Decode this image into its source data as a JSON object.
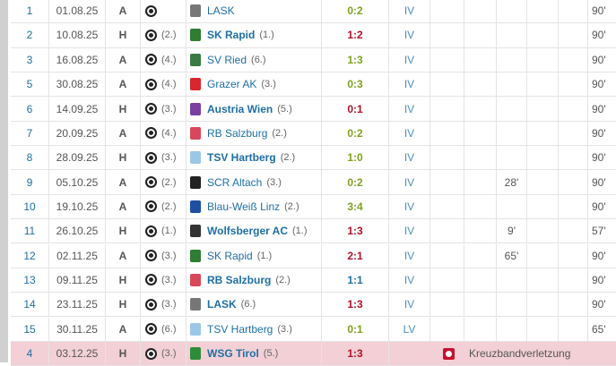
{
  "colors": {
    "win": "#7ea21e",
    "loss": "#b3102a",
    "draw": "#1d6fa5",
    "injured_row": "#f2d0d5"
  },
  "rows": [
    {
      "matchday": "1",
      "date": "01.08.25",
      "venue": "A",
      "own_rank": "",
      "opponent": "LASK",
      "opp_rank": "",
      "opp_bold": false,
      "logo": "#777",
      "result": "0:2",
      "outcome": "win",
      "position": "IV",
      "goal_col": "",
      "minutes": "90'"
    },
    {
      "matchday": "2",
      "date": "10.08.25",
      "venue": "H",
      "own_rank": "(2.)",
      "opponent": "SK Rapid",
      "opp_rank": "(1.)",
      "opp_bold": true,
      "logo": "#2e7d32",
      "result": "1:2",
      "outcome": "loss",
      "position": "IV",
      "goal_col": "",
      "minutes": "90'"
    },
    {
      "matchday": "3",
      "date": "16.08.25",
      "venue": "A",
      "own_rank": "(4.)",
      "opponent": "SV Ried",
      "opp_rank": "(6.)",
      "opp_bold": false,
      "logo": "#3a7a45",
      "result": "1:3",
      "outcome": "win",
      "position": "IV",
      "goal_col": "",
      "minutes": "90'"
    },
    {
      "matchday": "5",
      "date": "30.08.25",
      "venue": "A",
      "own_rank": "(4.)",
      "opponent": "Grazer AK",
      "opp_rank": "(3.)",
      "opp_bold": false,
      "logo": "#d9262e",
      "result": "0:3",
      "outcome": "win",
      "position": "IV",
      "goal_col": "",
      "minutes": "90'"
    },
    {
      "matchday": "6",
      "date": "14.09.25",
      "venue": "H",
      "own_rank": "(3.)",
      "opponent": "Austria Wien",
      "opp_rank": "(5.)",
      "opp_bold": true,
      "logo": "#7b3fa0",
      "result": "0:1",
      "outcome": "loss",
      "position": "IV",
      "goal_col": "",
      "minutes": "90'"
    },
    {
      "matchday": "7",
      "date": "20.09.25",
      "venue": "A",
      "own_rank": "(4.)",
      "opponent": "RB Salzburg",
      "opp_rank": "(2.)",
      "opp_bold": false,
      "logo": "#d8475a",
      "result": "0:2",
      "outcome": "win",
      "position": "IV",
      "goal_col": "",
      "minutes": "90'"
    },
    {
      "matchday": "8",
      "date": "28.09.25",
      "venue": "H",
      "own_rank": "(3.)",
      "opponent": "TSV Hartberg",
      "opp_rank": "(2.)",
      "opp_bold": true,
      "logo": "#9cc7e6",
      "result": "1:0",
      "outcome": "win",
      "position": "IV",
      "goal_col": "",
      "minutes": "90'"
    },
    {
      "matchday": "9",
      "date": "05.10.25",
      "venue": "A",
      "own_rank": "(2.)",
      "opponent": "SCR Altach",
      "opp_rank": "(3.)",
      "opp_bold": false,
      "logo": "#222",
      "result": "0:2",
      "outcome": "win",
      "position": "IV",
      "goal_col": "28'",
      "minutes": "90'"
    },
    {
      "matchday": "10",
      "date": "19.10.25",
      "venue": "A",
      "own_rank": "(2.)",
      "opponent": "Blau-Weiß Linz",
      "opp_rank": "(2.)",
      "opp_bold": false,
      "logo": "#1f4fa0",
      "result": "3:4",
      "outcome": "win",
      "position": "IV",
      "goal_col": "",
      "minutes": "90'"
    },
    {
      "matchday": "11",
      "date": "26.10.25",
      "venue": "H",
      "own_rank": "(1.)",
      "opponent": "Wolfsberger AC",
      "opp_rank": "(1.)",
      "opp_bold": true,
      "logo": "#333",
      "result": "1:3",
      "outcome": "loss",
      "position": "IV",
      "goal_col": "9'",
      "minutes": "57'"
    },
    {
      "matchday": "12",
      "date": "02.11.25",
      "venue": "A",
      "own_rank": "(3.)",
      "opponent": "SK Rapid",
      "opp_rank": "(1.)",
      "opp_bold": false,
      "logo": "#2e7d32",
      "result": "2:1",
      "outcome": "loss",
      "position": "IV",
      "goal_col": "65'",
      "minutes": "90'"
    },
    {
      "matchday": "13",
      "date": "09.11.25",
      "venue": "H",
      "own_rank": "(3.)",
      "opponent": "RB Salzburg",
      "opp_rank": "(2.)",
      "opp_bold": true,
      "logo": "#d8475a",
      "result": "1:1",
      "outcome": "draw",
      "position": "IV",
      "goal_col": "",
      "minutes": "90'"
    },
    {
      "matchday": "14",
      "date": "23.11.25",
      "venue": "H",
      "own_rank": "(3.)",
      "opponent": "LASK",
      "opp_rank": "(6.)",
      "opp_bold": true,
      "logo": "#777",
      "result": "1:3",
      "outcome": "loss",
      "position": "IV",
      "goal_col": "",
      "minutes": "90'"
    },
    {
      "matchday": "15",
      "date": "30.11.25",
      "venue": "A",
      "own_rank": "(6.)",
      "opponent": "TSV Hartberg",
      "opp_rank": "(3.)",
      "opp_bold": false,
      "logo": "#9cc7e6",
      "result": "0:1",
      "outcome": "win",
      "position": "LV",
      "goal_col": "",
      "minutes": "65'"
    },
    {
      "matchday": "4",
      "date": "03.12.25",
      "venue": "H",
      "own_rank": "(3.)",
      "opponent": "WSG Tirol",
      "opp_rank": "(5.)",
      "opp_bold": true,
      "logo": "#2e8b3a",
      "result": "1:3",
      "outcome": "loss",
      "injury": "Kreuzbandverletzung"
    }
  ]
}
